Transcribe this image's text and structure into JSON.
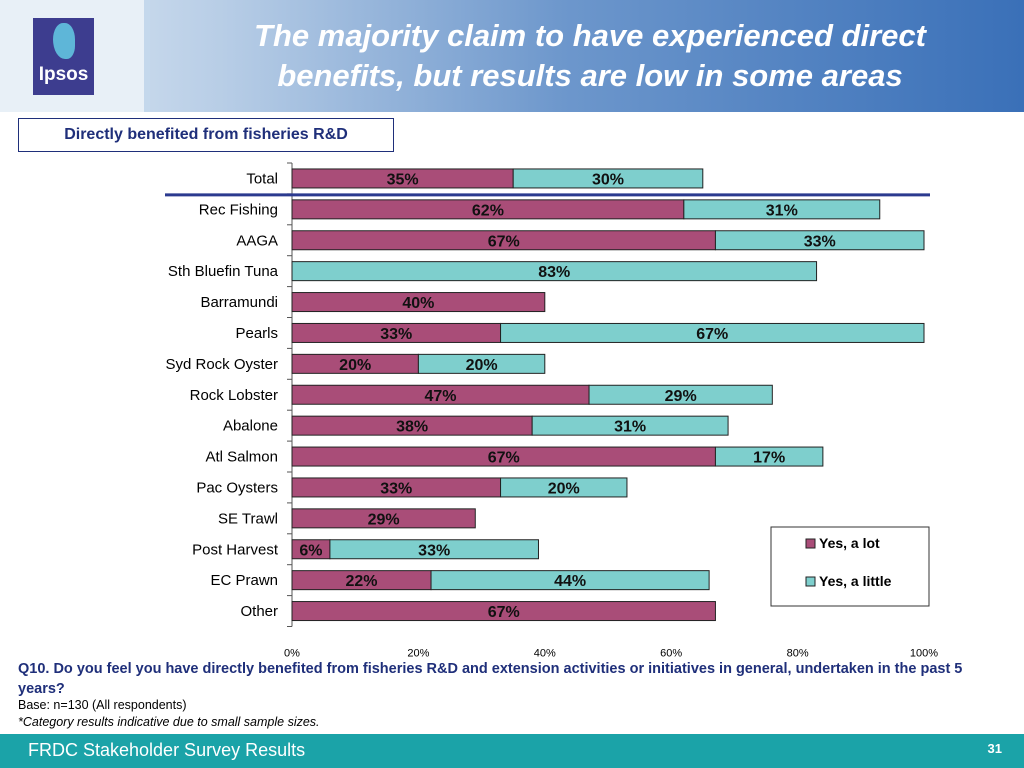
{
  "header": {
    "title_line1": "The majority claim to have experienced direct",
    "title_line2": "benefits, but results are low in some areas",
    "logo_text": "Ipsos"
  },
  "subtitle": "Directly benefited from fisheries R&D",
  "chart_data": {
    "type": "bar",
    "orientation": "horizontal",
    "stacked": true,
    "categories": [
      "Total",
      "Rec Fishing",
      "AAGA",
      "Sth Bluefin Tuna",
      "Barramundi",
      "Pearls",
      "Syd Rock Oyster",
      "Rock Lobster",
      "Abalone",
      "Atl Salmon",
      "Pac Oysters",
      "SE Trawl",
      "Post Harvest",
      "EC Prawn",
      "Other"
    ],
    "series": [
      {
        "name": "Yes, a lot",
        "color": "#a94d78",
        "values": [
          35,
          62,
          67,
          0,
          40,
          33,
          20,
          47,
          38,
          67,
          33,
          29,
          6,
          22,
          67
        ]
      },
      {
        "name": "Yes, a little",
        "color": "#7ecfcd",
        "values": [
          30,
          31,
          33,
          83,
          0,
          67,
          20,
          29,
          31,
          17,
          20,
          0,
          33,
          44,
          0
        ]
      }
    ],
    "xlim": [
      0,
      100
    ],
    "xticks": [
      "0%",
      "20%",
      "40%",
      "60%",
      "80%",
      "100%"
    ],
    "legend": "bottom-right"
  },
  "question": "Q10. Do you feel you have directly benefited from fisheries R&D and extension activities or initiatives in general, undertaken in the past 5 years?",
  "base": "Base: n=130 (All respondents)",
  "note": "*Category results indicative due to small sample sizes.",
  "footer": {
    "label": "FRDC Stakeholder Survey Results",
    "page": "31"
  }
}
